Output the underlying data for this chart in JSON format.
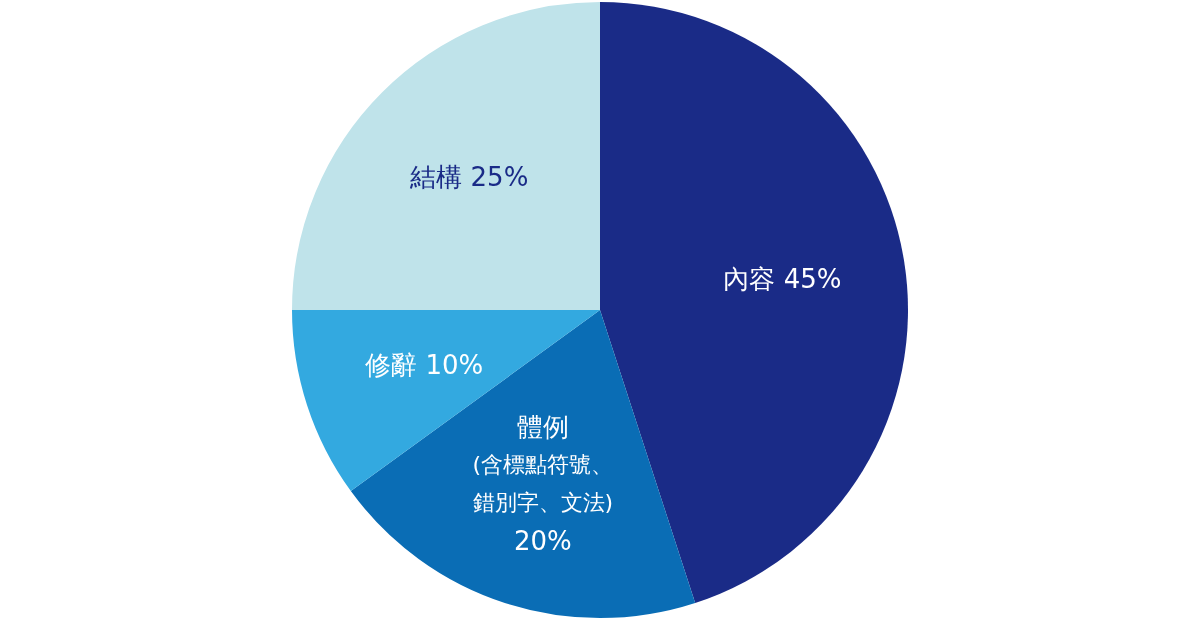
{
  "chart_data": {
    "type": "pie",
    "categories": [
      "內容",
      "體例(含標點符號、錯別字、文法)",
      "修辭",
      "結構"
    ],
    "values": [
      45,
      20,
      10,
      25
    ],
    "value_labels": [
      "45%",
      "20%",
      "10%",
      "25%"
    ],
    "colors": [
      "#1a2b87",
      "#0a6db5",
      "#33a9e0",
      "#bfe3ea"
    ],
    "legend": false
  }
}
